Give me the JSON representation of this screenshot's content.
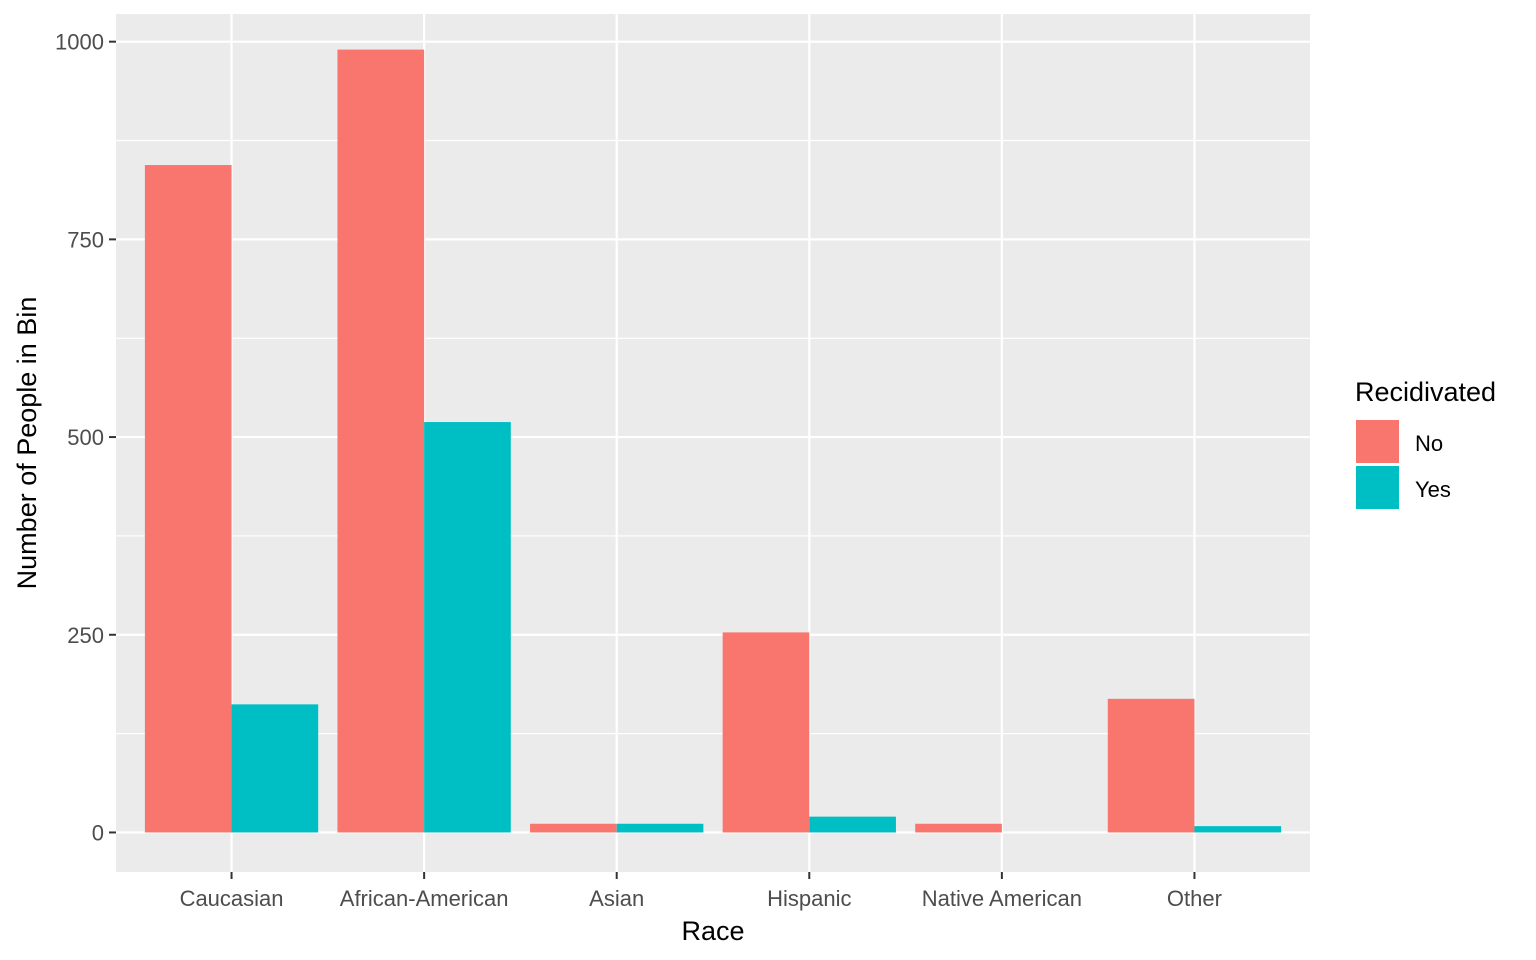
{
  "chart_data": {
    "type": "bar",
    "title": "",
    "xlabel": "Race",
    "ylabel": "Number of People in Bin",
    "categories": [
      "Caucasian",
      "African-American",
      "Asian",
      "Hispanic",
      "Native American",
      "Other"
    ],
    "series": [
      {
        "name": "No",
        "color": "#F8766D",
        "values": [
          844,
          990,
          11,
          253,
          11,
          169
        ]
      },
      {
        "name": "Yes",
        "color": "#00BFC4",
        "values": [
          162,
          519,
          11,
          20,
          0,
          8
        ]
      }
    ],
    "ylim": [
      -50,
      1035
    ],
    "yticks": [
      0,
      250,
      500,
      750,
      1000
    ],
    "grid": true,
    "legend": {
      "title": "Recidivated",
      "placement": "right"
    },
    "panel_background": "#EBEBEB"
  }
}
